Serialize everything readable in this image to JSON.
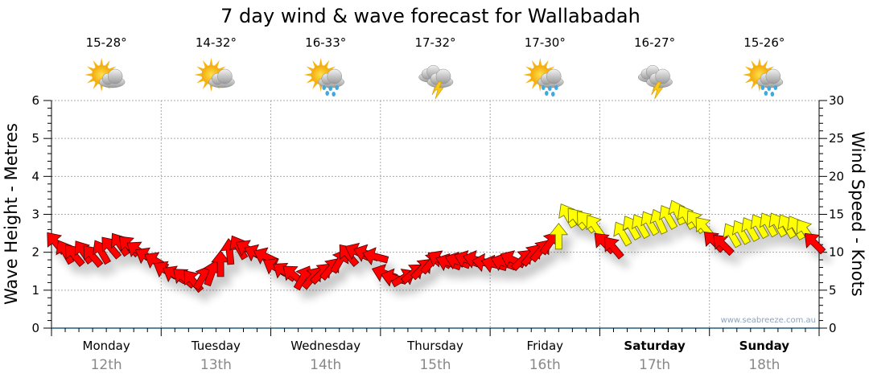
{
  "chart_data": {
    "type": "scatter",
    "title": "7 day wind & wave forecast for Wallabadah",
    "ylabel_left": "Wave Height - Metres",
    "ylabel_right": "Wind Speed - Knots",
    "ylim_left": [
      0,
      6
    ],
    "ylim_right": [
      0,
      30
    ],
    "yticks_left": [
      "0",
      "1",
      "2",
      "3",
      "4",
      "5",
      "6"
    ],
    "yticks_right": [
      "0",
      "5",
      "10",
      "15",
      "20",
      "25",
      "30"
    ],
    "grid": true,
    "watermark": "www.seabreeze.com.au",
    "days": [
      {
        "day": "Monday",
        "date": "12th",
        "temp": "15-28°",
        "icon": "sun-cloud",
        "bold": false
      },
      {
        "day": "Tuesday",
        "date": "13th",
        "temp": "14-32°",
        "icon": "sun-cloud",
        "bold": false
      },
      {
        "day": "Wednesday",
        "date": "14th",
        "temp": "16-33°",
        "icon": "sun-rain",
        "bold": false
      },
      {
        "day": "Thursday",
        "date": "15th",
        "temp": "17-32°",
        "icon": "storm",
        "bold": false
      },
      {
        "day": "Friday",
        "date": "16th",
        "temp": "17-30°",
        "icon": "sun-rain",
        "bold": false
      },
      {
        "day": "Saturday",
        "date": "17th",
        "temp": "16-27°",
        "icon": "storm",
        "bold": true
      },
      {
        "day": "Sunday",
        "date": "18th",
        "temp": "15-26°",
        "icon": "sun-rain",
        "bold": true
      }
    ],
    "wind_series": {
      "name": "Wind (knots, arrow heading degrees)",
      "interval_hours": 2,
      "knots": [
        11.2,
        10,
        9.6,
        10,
        9.5,
        10,
        10.6,
        11,
        10.8,
        10.2,
        9.4,
        8.8,
        7.6,
        7,
        6.6,
        6.2,
        6.6,
        7.2,
        8.4,
        10,
        10.6,
        10.4,
        9.8,
        9.4,
        8,
        7.4,
        7,
        6.6,
        6.6,
        7.2,
        7.8,
        8.8,
        9.6,
        10,
        9.8,
        9.4,
        7.2,
        6.6,
        6.6,
        7.2,
        7.8,
        8.6,
        9,
        8.6,
        8.8,
        9,
        9,
        8.6,
        8.4,
        8.6,
        9,
        9,
        9.6,
        10.2,
        11.2,
        12,
        14.8,
        14.4,
        14,
        13.4,
        11.2,
        10.6,
        12.4,
        13.2,
        13.4,
        13.8,
        14,
        14.6,
        15.2,
        14.6,
        14,
        13.2,
        11.4,
        11,
        12.2,
        12.6,
        13,
        13.4,
        13.6,
        13.6,
        13.4,
        13.2,
        12.8,
        11.2
      ],
      "heading": [
        320,
        330,
        320,
        325,
        320,
        330,
        320,
        325,
        315,
        305,
        300,
        300,
        300,
        300,
        310,
        320,
        30,
        20,
        0,
        355,
        330,
        300,
        295,
        295,
        300,
        305,
        310,
        30,
        40,
        45,
        40,
        30,
        320,
        295,
        290,
        285,
        290,
        285,
        60,
        50,
        45,
        40,
        300,
        290,
        290,
        290,
        285,
        280,
        285,
        290,
        295,
        45,
        40,
        40,
        35,
        0,
        330,
        320,
        320,
        325,
        315,
        320,
        330,
        330,
        330,
        330,
        335,
        330,
        335,
        330,
        325,
        320,
        315,
        315,
        330,
        330,
        330,
        330,
        330,
        330,
        330,
        330,
        325,
        315
      ]
    }
  }
}
